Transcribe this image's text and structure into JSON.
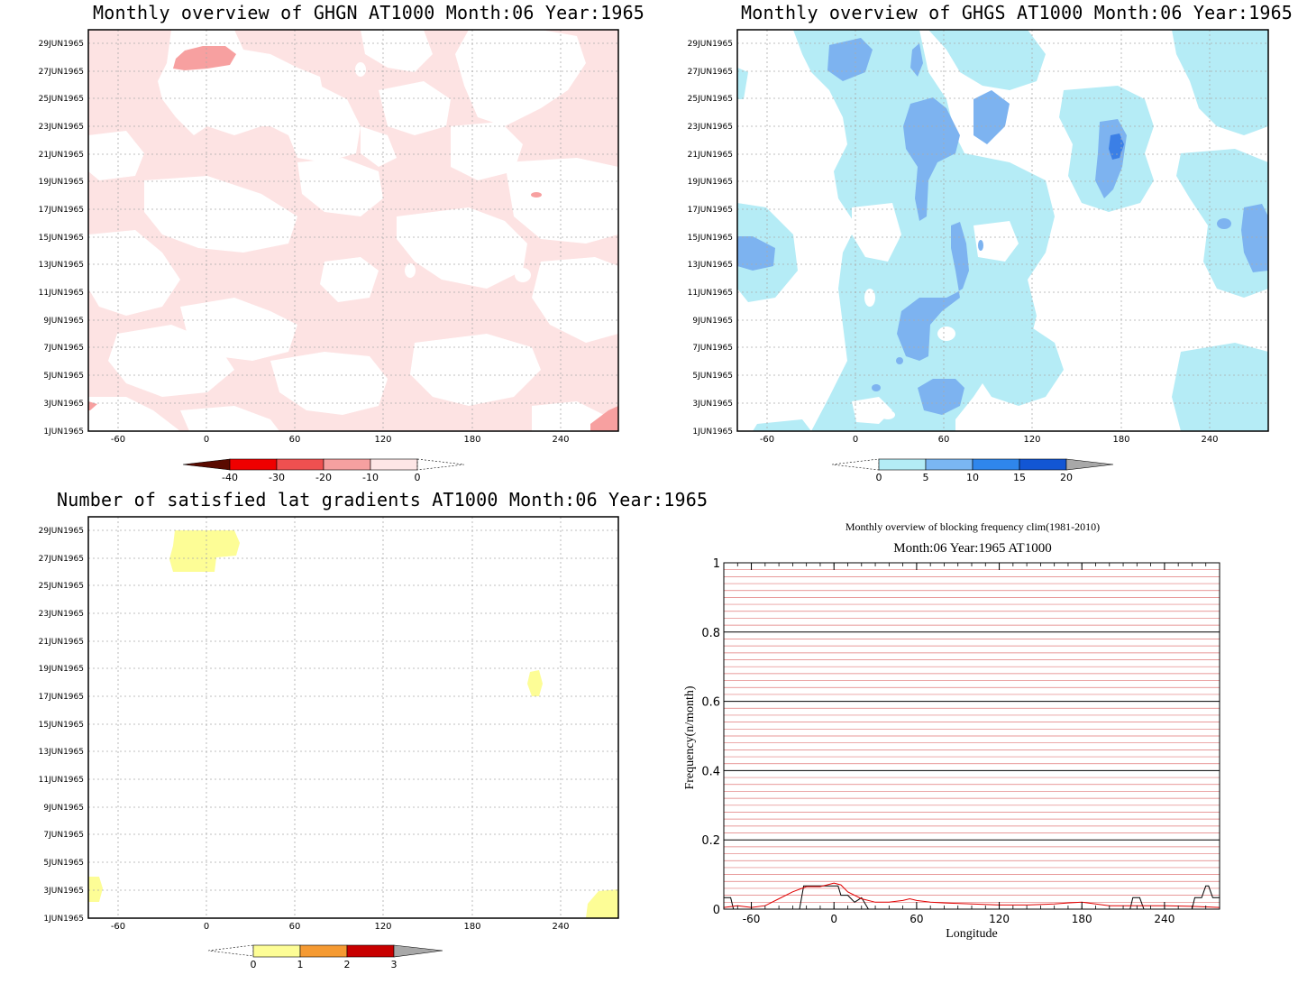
{
  "panels": {
    "ghgn": {
      "title": "Monthly overview of GHGN AT1000 Month:06 Year:1965",
      "colorbar": {
        "labels": [
          "-40",
          "-30",
          "-20",
          "-10",
          "0"
        ],
        "colors": [
          "#5a0a00",
          "#ef0000",
          "#ef5050",
          "#f5a0a0",
          "#fde6e6"
        ]
      },
      "fill_colors": {
        "light": "#fde3e3",
        "mid": "#f7a0a0",
        "strong": "#ef7070"
      }
    },
    "ghgs": {
      "title": "Monthly overview of GHGS AT1000 Month:06 Year:1965",
      "colorbar": {
        "labels": [
          "0",
          "5",
          "10",
          "15",
          "20"
        ],
        "colors": [
          "#b3ecf5",
          "#7ab6f3",
          "#2f86ec",
          "#1256d4",
          "#a8a8a8"
        ]
      },
      "fill_colors": {
        "light": "#b5ecf6",
        "mid": "#7db3f0",
        "strong": "#3b7fe6"
      }
    },
    "lat": {
      "title": "Number of satisfied lat gradients AT1000 Month:06 Year:1965",
      "colorbar": {
        "labels": [
          "0",
          "1",
          "2",
          "3"
        ],
        "colors": [
          "#fdfd96",
          "#f59a32",
          "#c80000",
          "#a8a8a8"
        ]
      },
      "fill_colors": {
        "light": "#fdfd96"
      }
    }
  },
  "shared_axes": {
    "x_ticks": [
      "-60",
      "0",
      "60",
      "120",
      "180",
      "240"
    ],
    "y_ticks": [
      "1JUN1965",
      "3JUN1965",
      "5JUN1965",
      "7JUN1965",
      "9JUN1965",
      "11JUN1965",
      "13JUN1965",
      "15JUN1965",
      "17JUN1965",
      "19JUN1965",
      "21JUN1965",
      "23JUN1965",
      "25JUN1965",
      "27JUN1965",
      "29JUN1965"
    ]
  },
  "chart_data": {
    "type": "line",
    "title": "Monthly overview of blocking frequency clim(1981-2010)",
    "subtitle": "Month:06 Year:1965  AT1000",
    "xlabel": "Longitude",
    "ylabel": "Frequency(n/month)",
    "xlim": [
      -80,
      280
    ],
    "ylim": [
      0,
      1
    ],
    "x_ticks": [
      -60,
      0,
      60,
      120,
      180,
      240
    ],
    "y_ticks": [
      0,
      0.2,
      0.4,
      0.6,
      0.8,
      1
    ],
    "y_tick_labels": [
      "0",
      "0.2",
      "0.4",
      "0.6",
      "0.8",
      "1"
    ],
    "x_tick_labels": [
      "-60",
      "0",
      "60",
      "120",
      "180",
      "240"
    ],
    "grid": true,
    "series": [
      {
        "color": "#000000",
        "x": [
          -80,
          -77,
          -75,
          -73,
          -60,
          -30,
          -25,
          -22,
          -15,
          0,
          3,
          5,
          10,
          15,
          20,
          25,
          215,
          217,
          220,
          222,
          225,
          227,
          260,
          262,
          267,
          270,
          272,
          275,
          280
        ],
        "y": [
          0.033,
          0.033,
          0.033,
          0,
          0,
          0,
          0,
          0.067,
          0.067,
          0.067,
          0.067,
          0.04,
          0.04,
          0.02,
          0.033,
          0,
          0,
          0.033,
          0.033,
          0.033,
          0,
          0,
          0,
          0.033,
          0.033,
          0.067,
          0.067,
          0.033,
          0.033
        ]
      },
      {
        "color": "#e00000",
        "x": [
          -80,
          -70,
          -60,
          -50,
          -40,
          -30,
          -20,
          -10,
          -5,
          0,
          5,
          10,
          20,
          30,
          40,
          50,
          55,
          60,
          70,
          80,
          100,
          120,
          140,
          160,
          170,
          180,
          190,
          200,
          220,
          240,
          260,
          280
        ],
        "y": [
          0.005,
          0.01,
          0.005,
          0.01,
          0.03,
          0.05,
          0.065,
          0.065,
          0.07,
          0.075,
          0.07,
          0.05,
          0.03,
          0.02,
          0.02,
          0.025,
          0.03,
          0.025,
          0.02,
          0.018,
          0.015,
          0.012,
          0.012,
          0.015,
          0.018,
          0.02,
          0.015,
          0.01,
          0.01,
          0.01,
          0.008,
          0.005
        ]
      }
    ]
  }
}
